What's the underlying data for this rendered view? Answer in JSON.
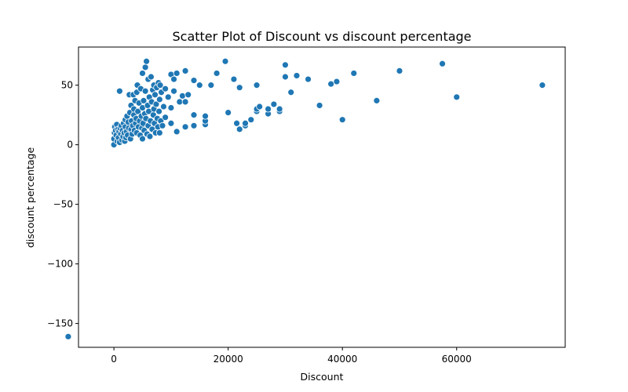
{
  "chart_data": {
    "type": "scatter",
    "title": "Scatter Plot of Discount vs discount percentage",
    "xlabel": "Discount",
    "ylabel": "discount percentage",
    "xlim": [
      -6200,
      79000
    ],
    "ylim": [
      -170,
      82
    ],
    "xticks": [
      0,
      20000,
      40000,
      60000
    ],
    "xtick_labels": [
      "0",
      "20000",
      "40000",
      "60000"
    ],
    "yticks": [
      -150,
      -100,
      -50,
      0,
      50
    ],
    "ytick_labels": [
      "−150",
      "−100",
      "−50",
      "0",
      "50"
    ],
    "grid": false,
    "color": "#1f77b4",
    "points": [
      {
        "x": -8000,
        "y": -161
      },
      {
        "x": 0,
        "y": 0
      },
      {
        "x": 0,
        "y": 5
      },
      {
        "x": 100,
        "y": 10
      },
      {
        "x": 150,
        "y": 15
      },
      {
        "x": 300,
        "y": 12
      },
      {
        "x": 400,
        "y": 8
      },
      {
        "x": 500,
        "y": 17
      },
      {
        "x": 600,
        "y": 3
      },
      {
        "x": 700,
        "y": 13
      },
      {
        "x": 800,
        "y": 6
      },
      {
        "x": 900,
        "y": 11
      },
      {
        "x": 1000,
        "y": 2
      },
      {
        "x": 1000,
        "y": 45
      },
      {
        "x": 1100,
        "y": 14
      },
      {
        "x": 1200,
        "y": 9
      },
      {
        "x": 1300,
        "y": 16
      },
      {
        "x": 1400,
        "y": 4
      },
      {
        "x": 1500,
        "y": 12
      },
      {
        "x": 1600,
        "y": 7
      },
      {
        "x": 1700,
        "y": 18
      },
      {
        "x": 1800,
        "y": 10
      },
      {
        "x": 1900,
        "y": 3
      },
      {
        "x": 2000,
        "y": 15
      },
      {
        "x": 2000,
        "y": 21
      },
      {
        "x": 2100,
        "y": 6
      },
      {
        "x": 2200,
        "y": 11
      },
      {
        "x": 2300,
        "y": 24
      },
      {
        "x": 2400,
        "y": 8
      },
      {
        "x": 2500,
        "y": 19
      },
      {
        "x": 2600,
        "y": 14
      },
      {
        "x": 2700,
        "y": 42
      },
      {
        "x": 2800,
        "y": 27
      },
      {
        "x": 2900,
        "y": 5
      },
      {
        "x": 3000,
        "y": 13
      },
      {
        "x": 3000,
        "y": 33
      },
      {
        "x": 3100,
        "y": 20
      },
      {
        "x": 3200,
        "y": 9
      },
      {
        "x": 3300,
        "y": 16
      },
      {
        "x": 3400,
        "y": 42
      },
      {
        "x": 3500,
        "y": 25
      },
      {
        "x": 3500,
        "y": 30
      },
      {
        "x": 3600,
        "y": 12
      },
      {
        "x": 3700,
        "y": 37
      },
      {
        "x": 3800,
        "y": 18
      },
      {
        "x": 3900,
        "y": 22
      },
      {
        "x": 4000,
        "y": 10
      },
      {
        "x": 4000,
        "y": 44
      },
      {
        "x": 4100,
        "y": 50
      },
      {
        "x": 4200,
        "y": 28
      },
      {
        "x": 4300,
        "y": 15
      },
      {
        "x": 4400,
        "y": 35
      },
      {
        "x": 4500,
        "y": 20
      },
      {
        "x": 4600,
        "y": 8
      },
      {
        "x": 4700,
        "y": 47
      },
      {
        "x": 4800,
        "y": 24
      },
      {
        "x": 4900,
        "y": 14
      },
      {
        "x": 5000,
        "y": 5
      },
      {
        "x": 5000,
        "y": 31
      },
      {
        "x": 5000,
        "y": 60
      },
      {
        "x": 5100,
        "y": 18
      },
      {
        "x": 5200,
        "y": 37
      },
      {
        "x": 5300,
        "y": 12
      },
      {
        "x": 5400,
        "y": 26
      },
      {
        "x": 5500,
        "y": 65
      },
      {
        "x": 5500,
        "y": 45
      },
      {
        "x": 5600,
        "y": 22
      },
      {
        "x": 5700,
        "y": 70
      },
      {
        "x": 5800,
        "y": 9
      },
      {
        "x": 5900,
        "y": 33
      },
      {
        "x": 6000,
        "y": 55
      },
      {
        "x": 6000,
        "y": 16
      },
      {
        "x": 6100,
        "y": 28
      },
      {
        "x": 6200,
        "y": 40
      },
      {
        "x": 6300,
        "y": 7
      },
      {
        "x": 6400,
        "y": 20
      },
      {
        "x": 6500,
        "y": 57
      },
      {
        "x": 6600,
        "y": 36
      },
      {
        "x": 6700,
        "y": 13
      },
      {
        "x": 6800,
        "y": 46
      },
      {
        "x": 6900,
        "y": 25
      },
      {
        "x": 7000,
        "y": 50
      },
      {
        "x": 7000,
        "y": 30
      },
      {
        "x": 7100,
        "y": 18
      },
      {
        "x": 7200,
        "y": 42
      },
      {
        "x": 7300,
        "y": 10
      },
      {
        "x": 7400,
        "y": 34
      },
      {
        "x": 7500,
        "y": 48
      },
      {
        "x": 7600,
        "y": 22
      },
      {
        "x": 7700,
        "y": 15
      },
      {
        "x": 7800,
        "y": 52
      },
      {
        "x": 7900,
        "y": 28
      },
      {
        "x": 8000,
        "y": 38
      },
      {
        "x": 8000,
        "y": 10
      },
      {
        "x": 8100,
        "y": 50
      },
      {
        "x": 8200,
        "y": 20
      },
      {
        "x": 8300,
        "y": 44
      },
      {
        "x": 8500,
        "y": 16
      },
      {
        "x": 8700,
        "y": 32
      },
      {
        "x": 9000,
        "y": 23
      },
      {
        "x": 9000,
        "y": 47
      },
      {
        "x": 9500,
        "y": 40
      },
      {
        "x": 10000,
        "y": 18
      },
      {
        "x": 10000,
        "y": 31
      },
      {
        "x": 10000,
        "y": 59
      },
      {
        "x": 10500,
        "y": 45
      },
      {
        "x": 10500,
        "y": 55
      },
      {
        "x": 11000,
        "y": 11
      },
      {
        "x": 11000,
        "y": 60
      },
      {
        "x": 11500,
        "y": 36
      },
      {
        "x": 12000,
        "y": 41
      },
      {
        "x": 12500,
        "y": 36
      },
      {
        "x": 12500,
        "y": 62
      },
      {
        "x": 12500,
        "y": 15
      },
      {
        "x": 13000,
        "y": 42
      },
      {
        "x": 14000,
        "y": 16
      },
      {
        "x": 14000,
        "y": 25
      },
      {
        "x": 14000,
        "y": 54
      },
      {
        "x": 15000,
        "y": 50
      },
      {
        "x": 16000,
        "y": 17
      },
      {
        "x": 16000,
        "y": 20
      },
      {
        "x": 16000,
        "y": 24
      },
      {
        "x": 17000,
        "y": 50
      },
      {
        "x": 18000,
        "y": 60
      },
      {
        "x": 19500,
        "y": 70
      },
      {
        "x": 20000,
        "y": 27
      },
      {
        "x": 21000,
        "y": 55
      },
      {
        "x": 21500,
        "y": 18
      },
      {
        "x": 22000,
        "y": 13
      },
      {
        "x": 22000,
        "y": 48
      },
      {
        "x": 23000,
        "y": 16
      },
      {
        "x": 23000,
        "y": 18
      },
      {
        "x": 24000,
        "y": 21
      },
      {
        "x": 25000,
        "y": 28
      },
      {
        "x": 25000,
        "y": 30
      },
      {
        "x": 25000,
        "y": 50
      },
      {
        "x": 25500,
        "y": 32
      },
      {
        "x": 27000,
        "y": 26
      },
      {
        "x": 27000,
        "y": 30
      },
      {
        "x": 28000,
        "y": 34
      },
      {
        "x": 29000,
        "y": 28
      },
      {
        "x": 29000,
        "y": 30
      },
      {
        "x": 30000,
        "y": 57
      },
      {
        "x": 30000,
        "y": 67
      },
      {
        "x": 31000,
        "y": 44
      },
      {
        "x": 32000,
        "y": 58
      },
      {
        "x": 34000,
        "y": 55
      },
      {
        "x": 36000,
        "y": 33
      },
      {
        "x": 38000,
        "y": 51
      },
      {
        "x": 39000,
        "y": 53
      },
      {
        "x": 40000,
        "y": 21
      },
      {
        "x": 42000,
        "y": 60
      },
      {
        "x": 46000,
        "y": 37
      },
      {
        "x": 50000,
        "y": 62
      },
      {
        "x": 57500,
        "y": 68
      },
      {
        "x": 60000,
        "y": 40
      },
      {
        "x": 75000,
        "y": 50
      }
    ]
  }
}
